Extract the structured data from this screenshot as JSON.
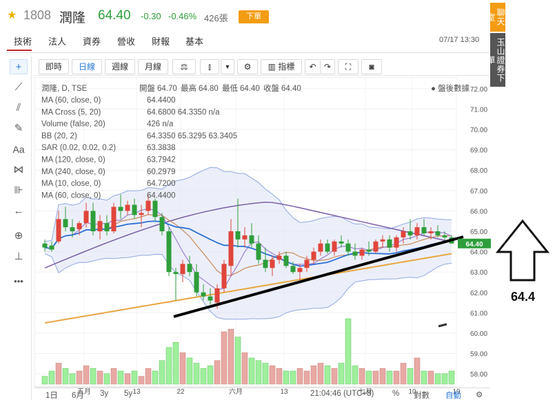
{
  "header": {
    "star": "★",
    "code": "1808",
    "name": "潤隆",
    "price": "64.40",
    "change": "-0.30",
    "change_pct": "-0.46%",
    "volume": "426張",
    "order_button": "下單"
  },
  "tabs": [
    "技術",
    "法人",
    "資券",
    "營收",
    "財報",
    "基本"
  ],
  "datetime": "07/17 13:30",
  "side_buttons": {
    "chat": "聊天室",
    "trade": "玉山證券下單"
  },
  "toolbar": {
    "ranges": [
      "即時",
      "日線",
      "週線",
      "月線"
    ],
    "indicator_label": "指標"
  },
  "colors": {
    "up": "#e0453b",
    "down": "#2e9e3a",
    "ma20": "#2a6fd6",
    "ma60": "#7a5ca6",
    "ma120": "#e8a640",
    "ma10": "#c9895a",
    "ma5": "#9d7fd0",
    "band": "#8fa7e0"
  },
  "legend": {
    "title": "潤隆, D, TSE",
    "ohlc": {
      "open_label": "開盤",
      "open": "64.70",
      "high_label": "最高",
      "high": "64.80",
      "low_label": "最低",
      "low": "64.40",
      "close_label": "收盤",
      "close": "64.40"
    },
    "after_hours": "盤後數據",
    "lines": [
      {
        "label": "MA (60, close, 0)",
        "values": "64.4400"
      },
      {
        "label": "MA Cross (5, 20)",
        "values": "64.6800 64.3350 n/a"
      },
      {
        "label": "Volume (false, 20)",
        "values": "426 n/a"
      },
      {
        "label": "BB (20, 2)",
        "values": "64.3350 65.3295 63.3405"
      },
      {
        "label": "SAR (0.02, 0.02, 0.2)",
        "values": "63.3838"
      },
      {
        "label": "MA (120, close, 0)",
        "values": "63.7942"
      },
      {
        "label": "MA (240, close, 0)",
        "values": "60.2979"
      },
      {
        "label": "MA (10, close, 0)",
        "values": "64.7200"
      },
      {
        "label": "MA (60, close, 0)",
        "values": "64.4400"
      }
    ]
  },
  "axis": {
    "y_ticks": [
      "72.00",
      "71.00",
      "70.00",
      "69.00",
      "68.00",
      "67.00",
      "66.00",
      "65.00",
      "64.00",
      "63.00",
      "62.00",
      "61.00",
      "60.00",
      "59.00",
      "58.00"
    ],
    "last_price_tag": "64.40",
    "x_ticks": [
      "五月",
      "13",
      "22",
      "六月",
      "13",
      "七月",
      "10",
      "19"
    ]
  },
  "bottom": {
    "ranges": [
      "1日",
      "6月",
      "3y",
      "5y"
    ],
    "time": "21:04:46 (UTC+8)",
    "pct": "%",
    "log": "對數",
    "auto": "自動"
  },
  "annotation": {
    "target_label": "64.4"
  },
  "chart_data": {
    "type": "candlestick",
    "ylim": [
      57.7,
      72.3
    ],
    "candles": [
      {
        "o": 64.4,
        "h": 64.6,
        "l": 64.0,
        "c": 64.2
      },
      {
        "o": 64.3,
        "h": 64.5,
        "l": 64.0,
        "c": 64.1
      },
      {
        "o": 64.5,
        "h": 66.0,
        "l": 64.4,
        "c": 65.6
      },
      {
        "o": 65.6,
        "h": 66.2,
        "l": 65.0,
        "c": 65.2
      },
      {
        "o": 65.2,
        "h": 65.6,
        "l": 64.7,
        "c": 65.0
      },
      {
        "o": 65.1,
        "h": 65.5,
        "l": 64.8,
        "c": 65.4
      },
      {
        "o": 65.4,
        "h": 66.4,
        "l": 65.2,
        "c": 66.0
      },
      {
        "o": 66.0,
        "h": 66.4,
        "l": 64.8,
        "c": 65.0
      },
      {
        "o": 65.0,
        "h": 65.8,
        "l": 64.6,
        "c": 65.5
      },
      {
        "o": 65.4,
        "h": 65.8,
        "l": 64.8,
        "c": 65.0
      },
      {
        "o": 65.0,
        "h": 66.4,
        "l": 64.9,
        "c": 66.2
      },
      {
        "o": 66.2,
        "h": 66.8,
        "l": 65.6,
        "c": 66.0
      },
      {
        "o": 66.0,
        "h": 66.5,
        "l": 65.8,
        "c": 66.3
      },
      {
        "o": 66.3,
        "h": 66.6,
        "l": 65.6,
        "c": 65.8
      },
      {
        "o": 65.8,
        "h": 66.3,
        "l": 65.2,
        "c": 65.9
      },
      {
        "o": 66.0,
        "h": 66.8,
        "l": 65.8,
        "c": 66.5
      },
      {
        "o": 66.5,
        "h": 66.6,
        "l": 65.5,
        "c": 65.7
      },
      {
        "o": 65.7,
        "h": 65.9,
        "l": 64.8,
        "c": 65.0
      },
      {
        "o": 65.0,
        "h": 65.2,
        "l": 62.8,
        "c": 63.0
      },
      {
        "o": 63.0,
        "h": 63.2,
        "l": 61.6,
        "c": 62.9
      },
      {
        "o": 62.9,
        "h": 63.6,
        "l": 62.5,
        "c": 63.4
      },
      {
        "o": 63.4,
        "h": 63.8,
        "l": 62.8,
        "c": 63.0
      },
      {
        "o": 63.0,
        "h": 63.4,
        "l": 61.8,
        "c": 62.0
      },
      {
        "o": 62.0,
        "h": 62.4,
        "l": 61.6,
        "c": 61.8
      },
      {
        "o": 61.8,
        "h": 62.2,
        "l": 61.4,
        "c": 61.6
      },
      {
        "o": 61.5,
        "h": 62.4,
        "l": 61.2,
        "c": 62.2
      },
      {
        "o": 62.2,
        "h": 63.6,
        "l": 62.0,
        "c": 63.4
      },
      {
        "o": 63.3,
        "h": 65.6,
        "l": 62.8,
        "c": 65.0
      },
      {
        "o": 65.0,
        "h": 66.6,
        "l": 64.2,
        "c": 64.6
      },
      {
        "o": 64.6,
        "h": 65.2,
        "l": 64.2,
        "c": 64.8
      },
      {
        "o": 64.8,
        "h": 65.4,
        "l": 64.2,
        "c": 64.4
      },
      {
        "o": 64.4,
        "h": 64.8,
        "l": 63.4,
        "c": 63.6
      },
      {
        "o": 63.6,
        "h": 64.2,
        "l": 63.0,
        "c": 63.2
      },
      {
        "o": 63.2,
        "h": 63.8,
        "l": 62.8,
        "c": 63.6
      },
      {
        "o": 63.6,
        "h": 64.0,
        "l": 63.4,
        "c": 63.8
      },
      {
        "o": 63.8,
        "h": 64.0,
        "l": 63.2,
        "c": 63.3
      },
      {
        "o": 63.3,
        "h": 63.5,
        "l": 62.9,
        "c": 63.0
      },
      {
        "o": 63.0,
        "h": 63.4,
        "l": 62.6,
        "c": 63.2
      },
      {
        "o": 63.2,
        "h": 63.8,
        "l": 63.0,
        "c": 63.6
      },
      {
        "o": 63.6,
        "h": 64.2,
        "l": 63.4,
        "c": 64.0
      },
      {
        "o": 64.0,
        "h": 64.6,
        "l": 63.8,
        "c": 64.4
      },
      {
        "o": 64.4,
        "h": 64.6,
        "l": 63.9,
        "c": 64.0
      },
      {
        "o": 64.0,
        "h": 64.6,
        "l": 63.8,
        "c": 64.5
      },
      {
        "o": 64.5,
        "h": 64.8,
        "l": 64.2,
        "c": 64.4
      },
      {
        "o": 64.4,
        "h": 64.6,
        "l": 63.8,
        "c": 64.0
      },
      {
        "o": 64.0,
        "h": 64.4,
        "l": 63.6,
        "c": 63.8
      },
      {
        "o": 63.8,
        "h": 64.2,
        "l": 63.6,
        "c": 64.1
      },
      {
        "o": 64.1,
        "h": 64.5,
        "l": 63.8,
        "c": 64.0
      },
      {
        "o": 64.0,
        "h": 64.6,
        "l": 63.9,
        "c": 64.5
      },
      {
        "o": 64.5,
        "h": 64.8,
        "l": 64.2,
        "c": 64.6
      },
      {
        "o": 64.6,
        "h": 64.8,
        "l": 64.0,
        "c": 64.2
      },
      {
        "o": 64.2,
        "h": 64.8,
        "l": 64.0,
        "c": 64.7
      },
      {
        "o": 64.7,
        "h": 65.2,
        "l": 64.4,
        "c": 65.0
      },
      {
        "o": 65.0,
        "h": 65.6,
        "l": 64.6,
        "c": 64.8
      },
      {
        "o": 64.8,
        "h": 65.4,
        "l": 64.6,
        "c": 65.2
      },
      {
        "o": 65.2,
        "h": 65.6,
        "l": 64.8,
        "c": 64.9
      },
      {
        "o": 64.9,
        "h": 65.2,
        "l": 64.6,
        "c": 65.0
      },
      {
        "o": 65.0,
        "h": 65.3,
        "l": 64.7,
        "c": 64.8
      },
      {
        "o": 64.8,
        "h": 65.0,
        "l": 64.6,
        "c": 64.7
      },
      {
        "o": 64.7,
        "h": 64.8,
        "l": 64.4,
        "c": 64.4
      }
    ],
    "volumes": [
      3,
      5,
      8,
      6,
      4,
      5,
      7,
      6,
      5,
      4,
      6,
      5,
      4,
      5,
      3,
      6,
      5,
      9,
      14,
      16,
      12,
      10,
      8,
      6,
      7,
      9,
      20,
      21,
      18,
      12,
      10,
      9,
      8,
      7,
      6,
      5,
      5,
      6,
      5,
      7,
      8,
      7,
      6,
      8,
      25,
      7,
      6,
      5,
      5,
      6,
      5,
      5,
      8,
      6,
      10,
      5,
      5,
      4,
      4,
      5
    ]
  }
}
